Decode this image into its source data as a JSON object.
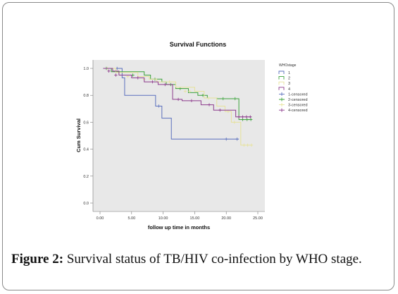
{
  "figure": {
    "caption_label": "Figure 2:",
    "caption_text": " Survival status of TB/HIV co-infection by WHO stage."
  },
  "chart_data": {
    "type": "line",
    "title": "Survival Functions",
    "xlabel": "follow up time in months",
    "ylabel": "Cum Survival",
    "xlim": [
      0,
      25
    ],
    "ylim": [
      0,
      1.0
    ],
    "x_ticks": [
      0,
      5,
      10,
      15,
      20,
      25
    ],
    "x_tick_labels": [
      "0.00",
      "5.00",
      "10.00",
      "15.00",
      "20.00",
      "25.00"
    ],
    "y_ticks": [
      0,
      0.2,
      0.4,
      0.6,
      0.8,
      1.0
    ],
    "y_tick_labels": [
      "0.0",
      "0.2",
      "0.4",
      "0.6",
      "0.8",
      "1.0"
    ],
    "grid": false,
    "plot_background": "#e8e8e8",
    "legend_title": "WHOstage",
    "legend_position": "right",
    "legend": [
      {
        "label": "1",
        "color": "#5a6fbd",
        "kind": "line"
      },
      {
        "label": "2",
        "color": "#3aa23a",
        "kind": "line"
      },
      {
        "label": "3",
        "color": "#e6e29a",
        "kind": "line"
      },
      {
        "label": "4",
        "color": "#8c3a8c",
        "kind": "line"
      },
      {
        "label": "1-censored",
        "color": "#5a6fbd",
        "kind": "censor"
      },
      {
        "label": "2-censored",
        "color": "#3aa23a",
        "kind": "censor"
      },
      {
        "label": "3-censored",
        "color": "#e6e29a",
        "kind": "censor"
      },
      {
        "label": "4-censored",
        "color": "#8c3a8c",
        "kind": "censor"
      }
    ],
    "series": [
      {
        "name": "1",
        "color": "#5a6fbd",
        "steps": [
          [
            0.5,
            1.0
          ],
          [
            3.5,
            0.93
          ],
          [
            3.9,
            0.8
          ],
          [
            8.8,
            0.72
          ],
          [
            9.8,
            0.63
          ],
          [
            11.3,
            0.475
          ],
          [
            22.0,
            0.475
          ]
        ],
        "censored": [
          [
            2.7,
            1.0
          ],
          [
            9.3,
            0.72
          ],
          [
            20.0,
            0.475
          ],
          [
            21.7,
            0.475
          ]
        ]
      },
      {
        "name": "2",
        "color": "#3aa23a",
        "steps": [
          [
            0.5,
            1.0
          ],
          [
            1.8,
            0.975
          ],
          [
            7.0,
            0.95
          ],
          [
            8.0,
            0.92
          ],
          [
            9.8,
            0.9
          ],
          [
            10.5,
            0.88
          ],
          [
            12.0,
            0.85
          ],
          [
            14.0,
            0.82
          ],
          [
            15.5,
            0.8
          ],
          [
            17.0,
            0.78
          ],
          [
            18.5,
            0.775
          ],
          [
            22.0,
            0.62
          ],
          [
            24.0,
            0.62
          ]
        ],
        "censored": [
          [
            1.0,
            1.0
          ],
          [
            5.2,
            0.95
          ],
          [
            8.7,
            0.92
          ],
          [
            11.2,
            0.88
          ],
          [
            12.7,
            0.85
          ],
          [
            16.3,
            0.8
          ],
          [
            19.5,
            0.775
          ],
          [
            21.4,
            0.775
          ],
          [
            22.6,
            0.62
          ],
          [
            23.3,
            0.62
          ],
          [
            23.9,
            0.62
          ]
        ]
      },
      {
        "name": "3",
        "color": "#e6e29a",
        "steps": [
          [
            0.5,
            1.0
          ],
          [
            2.5,
            0.97
          ],
          [
            6.0,
            0.94
          ],
          [
            7.8,
            0.92
          ],
          [
            9.0,
            0.9
          ],
          [
            12.0,
            0.86
          ],
          [
            15.0,
            0.83
          ],
          [
            16.5,
            0.78
          ],
          [
            18.5,
            0.72
          ],
          [
            19.8,
            0.68
          ],
          [
            20.8,
            0.6
          ],
          [
            22.3,
            0.43
          ],
          [
            24.0,
            0.43
          ]
        ],
        "censored": [
          [
            1.2,
            1.0
          ],
          [
            4.4,
            0.94
          ],
          [
            7.0,
            0.92
          ],
          [
            11.0,
            0.9
          ],
          [
            13.5,
            0.83
          ],
          [
            14.2,
            0.83
          ],
          [
            17.2,
            0.78
          ],
          [
            20.3,
            0.68
          ],
          [
            21.3,
            0.6
          ],
          [
            22.8,
            0.43
          ],
          [
            23.4,
            0.43
          ],
          [
            24.0,
            0.43
          ]
        ]
      },
      {
        "name": "4",
        "color": "#8c3a8c",
        "steps": [
          [
            0.5,
            1.0
          ],
          [
            2.0,
            0.98
          ],
          [
            3.0,
            0.95
          ],
          [
            5.0,
            0.93
          ],
          [
            7.0,
            0.9
          ],
          [
            9.2,
            0.88
          ],
          [
            11.5,
            0.77
          ],
          [
            13.0,
            0.76
          ],
          [
            16.0,
            0.73
          ],
          [
            18.0,
            0.69
          ],
          [
            21.5,
            0.64
          ],
          [
            24.0,
            0.64
          ]
        ],
        "censored": [
          [
            1.4,
            0.98
          ],
          [
            2.5,
            0.95
          ],
          [
            6.0,
            0.93
          ],
          [
            8.3,
            0.9
          ],
          [
            10.3,
            0.88
          ],
          [
            12.4,
            0.77
          ],
          [
            14.5,
            0.76
          ],
          [
            17.3,
            0.73
          ],
          [
            19.0,
            0.69
          ],
          [
            22.0,
            0.64
          ],
          [
            22.6,
            0.64
          ],
          [
            23.2,
            0.64
          ],
          [
            23.8,
            0.64
          ]
        ]
      }
    ]
  }
}
